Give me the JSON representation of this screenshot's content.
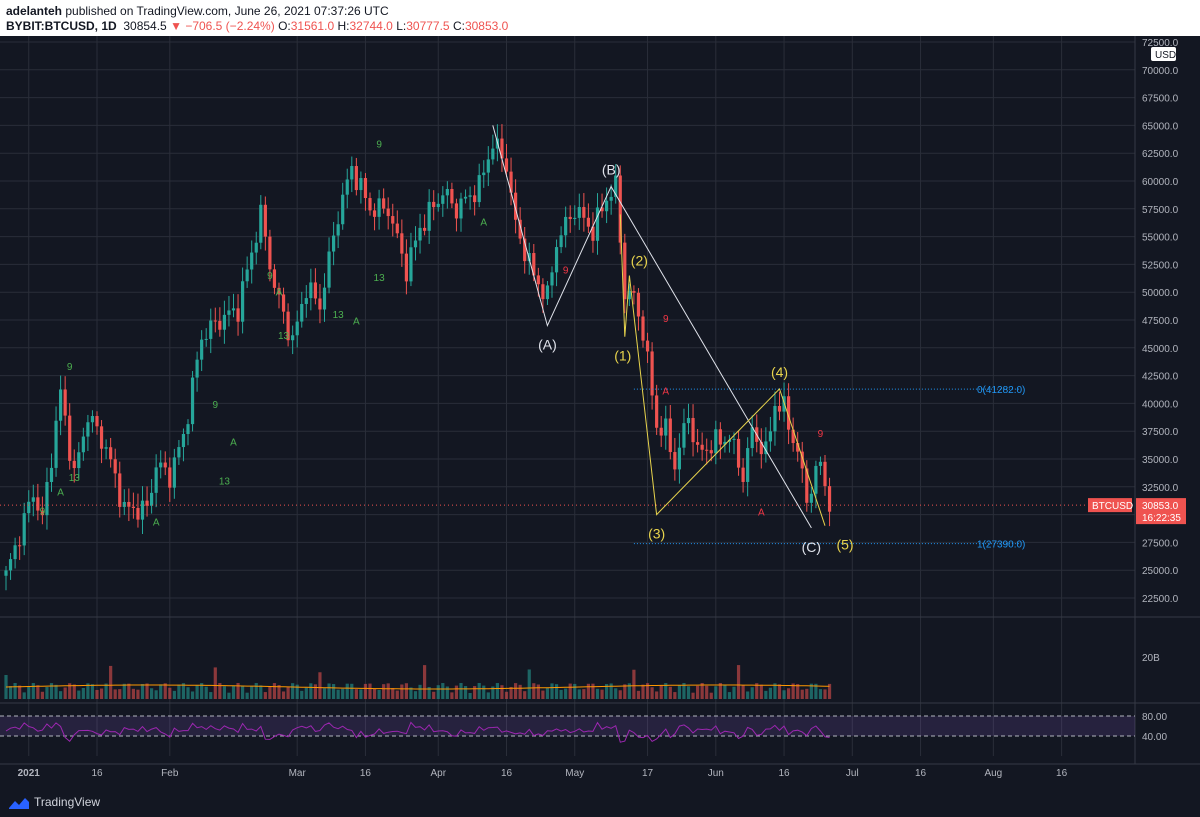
{
  "header": {
    "author": "adelanteh",
    "published_text": " published on TradingView.com, June 26, 2021 07:37:26 UTC",
    "symbol": "BYBIT:BTCUSD, 1D",
    "last_price": "30854.5",
    "change": "−706.5 (−2.24%)",
    "o_label": "O:",
    "o_value": "31561.0",
    "h_label": "H:",
    "h_value": "32744.0",
    "l_label": "L:",
    "l_value": "30777.5",
    "c_label": "C:",
    "c_value": "30853.0"
  },
  "footer": {
    "brand": "TradingView"
  },
  "colors": {
    "bg": "#131722",
    "up": "#26a69a",
    "down": "#ef5350",
    "grid": "#2a2e39",
    "wave_white": "#e0e3eb",
    "wave_yellow": "#e8d44d",
    "fib": "#2196f3",
    "rsi": "#9c27b0"
  },
  "chart_data": {
    "type": "candlestick",
    "symbol": "BYBIT:BTCUSD",
    "timeframe": "1D",
    "currency_label": "USD",
    "y_ticks": [
      22500,
      25000,
      27500,
      30000,
      32500,
      35000,
      37500,
      40000,
      42500,
      45000,
      47500,
      50000,
      52500,
      55000,
      57500,
      60000,
      62500,
      65000,
      67500,
      70000,
      72500
    ],
    "y_tick_labels": [
      "22500.0",
      "25000.0",
      "27500.0",
      "30000.0",
      "32500.0",
      "35000.0",
      "37500.0",
      "40000.0",
      "42500.0",
      "45000.0",
      "47500.0",
      "50000.0",
      "52500.0",
      "55000.0",
      "57500.0",
      "60000.0",
      "62500.0",
      "65000.0",
      "67500.0",
      "70000.0",
      "72500.0"
    ],
    "x_tick_labels": [
      {
        "date": "2021-01-01",
        "label": "2021"
      },
      {
        "date": "2021-01-16",
        "label": "16"
      },
      {
        "date": "2021-02-01",
        "label": "Feb"
      },
      {
        "date": "2021-03-01",
        "label": "Mar"
      },
      {
        "date": "2021-03-16",
        "label": "16"
      },
      {
        "date": "2021-04-01",
        "label": "Apr"
      },
      {
        "date": "2021-04-16",
        "label": "16"
      },
      {
        "date": "2021-05-01",
        "label": "May"
      },
      {
        "date": "2021-05-17",
        "label": "17"
      },
      {
        "date": "2021-06-01",
        "label": "Jun"
      },
      {
        "date": "2021-06-16",
        "label": "16"
      },
      {
        "date": "2021-07-01",
        "label": "Jul"
      },
      {
        "date": "2021-07-16",
        "label": "16"
      },
      {
        "date": "2021-08-01",
        "label": "Aug"
      },
      {
        "date": "2021-08-16",
        "label": "16"
      }
    ],
    "price_path": [
      [
        "2020-12-27",
        24500
      ],
      [
        "2021-01-02",
        32000
      ],
      [
        "2021-01-04",
        29500
      ],
      [
        "2021-01-08",
        41000
      ],
      [
        "2021-01-11",
        33500
      ],
      [
        "2021-01-14",
        39000
      ],
      [
        "2021-01-18",
        36000
      ],
      [
        "2021-01-22",
        30500
      ],
      [
        "2021-01-27",
        30500
      ],
      [
        "2021-01-29",
        34500
      ],
      [
        "2021-02-01",
        33500
      ],
      [
        "2021-02-04",
        37000
      ],
      [
        "2021-02-08",
        46000
      ],
      [
        "2021-02-12",
        47500
      ],
      [
        "2021-02-16",
        48500
      ],
      [
        "2021-02-21",
        57000
      ],
      [
        "2021-02-24",
        50500
      ],
      [
        "2021-02-28",
        45500
      ],
      [
        "2021-03-03",
        50500
      ],
      [
        "2021-03-06",
        48800
      ],
      [
        "2021-03-10",
        57000
      ],
      [
        "2021-03-13",
        61200
      ],
      [
        "2021-03-17",
        57500
      ],
      [
        "2021-03-21",
        57500
      ],
      [
        "2021-03-25",
        52000
      ],
      [
        "2021-03-28",
        55800
      ],
      [
        "2021-04-02",
        59000
      ],
      [
        "2021-04-05",
        57500
      ],
      [
        "2021-04-10",
        59500
      ],
      [
        "2021-04-13",
        63500
      ],
      [
        "2021-04-16",
        61500
      ],
      [
        "2021-04-18",
        56000
      ],
      [
        "2021-04-22",
        51500
      ],
      [
        "2021-04-25",
        49500
      ],
      [
        "2021-04-27",
        54500
      ],
      [
        "2021-05-01",
        57500
      ],
      [
        "2021-05-05",
        55500
      ],
      [
        "2021-05-08",
        58500
      ],
      [
        "2021-05-10",
        59500
      ],
      [
        "2021-05-12",
        50000
      ],
      [
        "2021-05-14",
        49500
      ],
      [
        "2021-05-16",
        46500
      ],
      [
        "2021-05-19",
        38000
      ],
      [
        "2021-05-21",
        37500
      ],
      [
        "2021-05-23",
        34500
      ],
      [
        "2021-05-26",
        39000
      ],
      [
        "2021-05-28",
        35500
      ],
      [
        "2021-06-01",
        36500
      ],
      [
        "2021-06-04",
        37000
      ],
      [
        "2021-06-07",
        33500
      ],
      [
        "2021-06-09",
        37500
      ],
      [
        "2021-06-12",
        35500
      ],
      [
        "2021-06-14",
        40000
      ],
      [
        "2021-06-16",
        39500
      ],
      [
        "2021-06-19",
        35500
      ],
      [
        "2021-06-21",
        31500
      ],
      [
        "2021-06-23",
        33500
      ],
      [
        "2021-06-24",
        34800
      ],
      [
        "2021-06-26",
        30853
      ]
    ],
    "last_price_label": {
      "symbol": "BTCUSD",
      "price": "30853.0",
      "countdown": "16:22:35"
    },
    "elliott_wave_white": [
      {
        "label": "",
        "date": "2021-04-13",
        "price": 65000
      },
      {
        "label": "(A)",
        "date": "2021-04-25",
        "price": 47000
      },
      {
        "label": "(B)",
        "date": "2021-05-09",
        "price": 59500
      },
      {
        "label": "(C)",
        "date": "2021-06-22",
        "price": 28800
      }
    ],
    "elliott_wave_yellow": [
      {
        "label": "",
        "date": "2021-05-11",
        "price": 57000
      },
      {
        "label": "(1)",
        "date": "2021-05-12",
        "price": 46000
      },
      {
        "label": "(2)",
        "date": "2021-05-13",
        "price": 51500
      },
      {
        "label": "(3)",
        "date": "2021-05-19",
        "price": 30000
      },
      {
        "label": "(4)",
        "date": "2021-06-15",
        "price": 41300
      },
      {
        "label": "(5)",
        "date": "2021-06-25",
        "price": 29000
      }
    ],
    "fib_levels": [
      {
        "label": "0(41282.0)",
        "value": 41282
      },
      {
        "label": "1(27390.0)",
        "value": 27390
      }
    ],
    "td_markers": [
      {
        "text": "9",
        "date": "2021-01-10",
        "price": 43000,
        "color": "green"
      },
      {
        "text": "13",
        "date": "2021-01-11",
        "price": 33000,
        "color": "green"
      },
      {
        "text": "A",
        "date": "2021-01-08",
        "price": 31700,
        "color": "green"
      },
      {
        "text": "9",
        "date": "2021-01-04",
        "price": 30000,
        "color": "green"
      },
      {
        "text": "A",
        "date": "2021-01-29",
        "price": 29000,
        "color": "green"
      },
      {
        "text": "13",
        "date": "2021-02-13",
        "price": 32700,
        "color": "green"
      },
      {
        "text": "A",
        "date": "2021-02-15",
        "price": 36200,
        "color": "green"
      },
      {
        "text": "9",
        "date": "2021-02-11",
        "price": 39600,
        "color": "green"
      },
      {
        "text": "9",
        "date": "2021-02-23",
        "price": 51200,
        "color": "green"
      },
      {
        "text": "A",
        "date": "2021-02-25",
        "price": 49700,
        "color": "green"
      },
      {
        "text": "13",
        "date": "2021-02-26",
        "price": 45800,
        "color": "green"
      },
      {
        "text": "13",
        "date": "2021-03-10",
        "price": 47700,
        "color": "green"
      },
      {
        "text": "A",
        "date": "2021-03-14",
        "price": 47100,
        "color": "green"
      },
      {
        "text": "13",
        "date": "2021-03-19",
        "price": 51000,
        "color": "green"
      },
      {
        "text": "9",
        "date": "2021-03-19",
        "price": 63000,
        "color": "green"
      },
      {
        "text": "A",
        "date": "2021-04-11",
        "price": 56000,
        "color": "green"
      },
      {
        "text": "9",
        "date": "2021-04-29",
        "price": 51700,
        "color": "red"
      },
      {
        "text": "9",
        "date": "2021-05-21",
        "price": 47300,
        "color": "red"
      },
      {
        "text": "A",
        "date": "2021-05-21",
        "price": 40800,
        "color": "red"
      },
      {
        "text": "A",
        "date": "2021-06-11",
        "price": 29900,
        "color": "red"
      },
      {
        "text": "9",
        "date": "2021-06-24",
        "price": 37000,
        "color": "red"
      }
    ],
    "volume_panel": {
      "axis_label": "20B",
      "axis_value": 20000000000
    },
    "rsi_panel": {
      "levels": [
        80,
        40
      ],
      "level_labels": [
        "80.00",
        "40.00"
      ]
    }
  }
}
